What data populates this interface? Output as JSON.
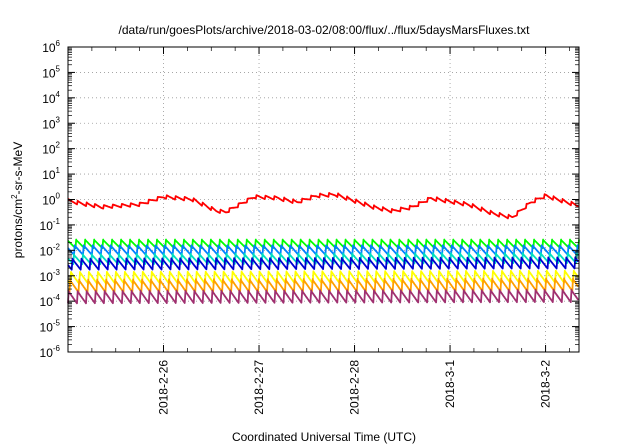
{
  "chart_data": {
    "type": "line",
    "title": "/data/run/goesPlots/archive/2018-03-02/08:00/flux/../flux/5daysMarsFluxes.txt",
    "xlabel": "Coordinated Universal Time (UTC)",
    "ylabel_base": "protons/cm",
    "ylabel_sup": "2",
    "ylabel_rest": "-sr-s-MeV",
    "yscale": "log",
    "ylim_exp": [
      -6,
      6
    ],
    "y_tick_exponents": [
      -6,
      -5,
      -4,
      -3,
      -2,
      -1,
      0,
      1,
      2,
      3,
      4,
      5,
      6
    ],
    "y_tick_base": "10",
    "xlim_days": [
      0,
      5.35
    ],
    "x_ticks": [
      {
        "label": "2018-2-26",
        "day": 1.0
      },
      {
        "label": "2018-2-27",
        "day": 2.0
      },
      {
        "label": "2018-2-28",
        "day": 3.0
      },
      {
        "label": "2018-3-1",
        "day": 4.0
      },
      {
        "label": "2018-3-2",
        "day": 5.0
      }
    ],
    "x_start": "2018-02-25 00:00",
    "grid": "dotted",
    "legend": "none",
    "series_style": "sawtooth",
    "sawtooth_period_days": 0.094,
    "series": [
      {
        "color": "#ff0000",
        "baseline_log": [
          [
            0,
            -0.05
          ],
          [
            0.35,
            -0.3
          ],
          [
            0.75,
            -0.2
          ],
          [
            1.0,
            0.1
          ],
          [
            1.3,
            0.0
          ],
          [
            1.55,
            -0.45
          ],
          [
            1.65,
            -0.5
          ],
          [
            1.95,
            0.1
          ],
          [
            2.2,
            0.05
          ],
          [
            2.4,
            -0.1
          ],
          [
            2.6,
            0.15
          ],
          [
            2.8,
            0.2
          ],
          [
            3.2,
            -0.3
          ],
          [
            3.4,
            -0.45
          ],
          [
            3.6,
            -0.3
          ],
          [
            3.8,
            0.05
          ],
          [
            4.2,
            -0.2
          ],
          [
            4.45,
            -0.55
          ],
          [
            4.65,
            -0.7
          ],
          [
            4.85,
            -0.1
          ],
          [
            5.0,
            0.15
          ],
          [
            5.35,
            -0.25
          ]
        ],
        "amp": 0.3
      },
      {
        "color": "#00ff00",
        "baseline_log": [
          [
            0,
            -1.75
          ],
          [
            5.35,
            -1.75
          ]
        ],
        "amp": 0.35
      },
      {
        "color": "#0080ff",
        "baseline_log": [
          [
            0,
            -2.0
          ],
          [
            5.35,
            -2.0
          ]
        ],
        "amp": 0.4
      },
      {
        "color": "#00e0c0",
        "baseline_log": [
          [
            0,
            -2.35
          ],
          [
            5.35,
            -2.3
          ]
        ],
        "amp": 0.4
      },
      {
        "color": "#0000d0",
        "baseline_log": [
          [
            0,
            -2.55
          ],
          [
            5.35,
            -2.5
          ]
        ],
        "amp": 0.45
      },
      {
        "color": "#ffff00",
        "baseline_log": [
          [
            0,
            -3.1
          ],
          [
            5.35,
            -3.05
          ]
        ],
        "amp": 0.5
      },
      {
        "color": "#ffa000",
        "baseline_log": [
          [
            0,
            -3.4
          ],
          [
            5.35,
            -3.35
          ]
        ],
        "amp": 0.5
      },
      {
        "color": "#a03070",
        "baseline_log": [
          [
            0,
            -3.85
          ],
          [
            5.35,
            -3.8
          ]
        ],
        "amp": 0.5
      }
    ]
  }
}
